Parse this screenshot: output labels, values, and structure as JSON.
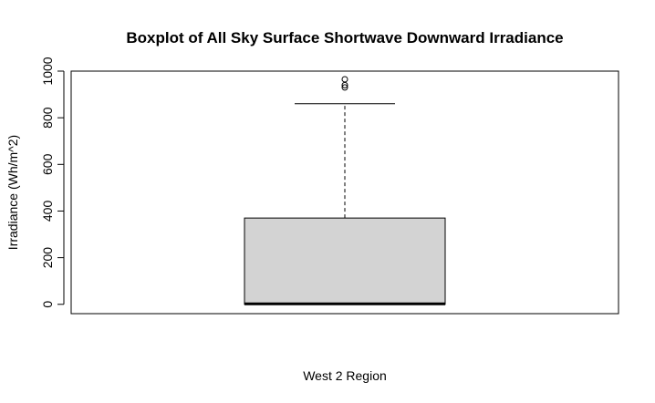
{
  "chart_data": {
    "type": "boxplot",
    "title": "Boxplot of All Sky Surface Shortwave Downward Irradiance",
    "xlabel": "West 2 Region",
    "ylabel": "Irradiance (Wh/m^2)",
    "ylim": [
      -40,
      1000
    ],
    "yticks": [
      0,
      200,
      400,
      600,
      800,
      1000
    ],
    "ytick_labels": [
      "0",
      "200",
      "400",
      "600",
      "800",
      "1000"
    ],
    "box": {
      "min": 0,
      "q1": 0,
      "median": 2,
      "q3": 370,
      "whisker_high": 860,
      "fill": "#d3d3d3"
    },
    "outliers": [
      930,
      940,
      965
    ],
    "grid": false
  }
}
